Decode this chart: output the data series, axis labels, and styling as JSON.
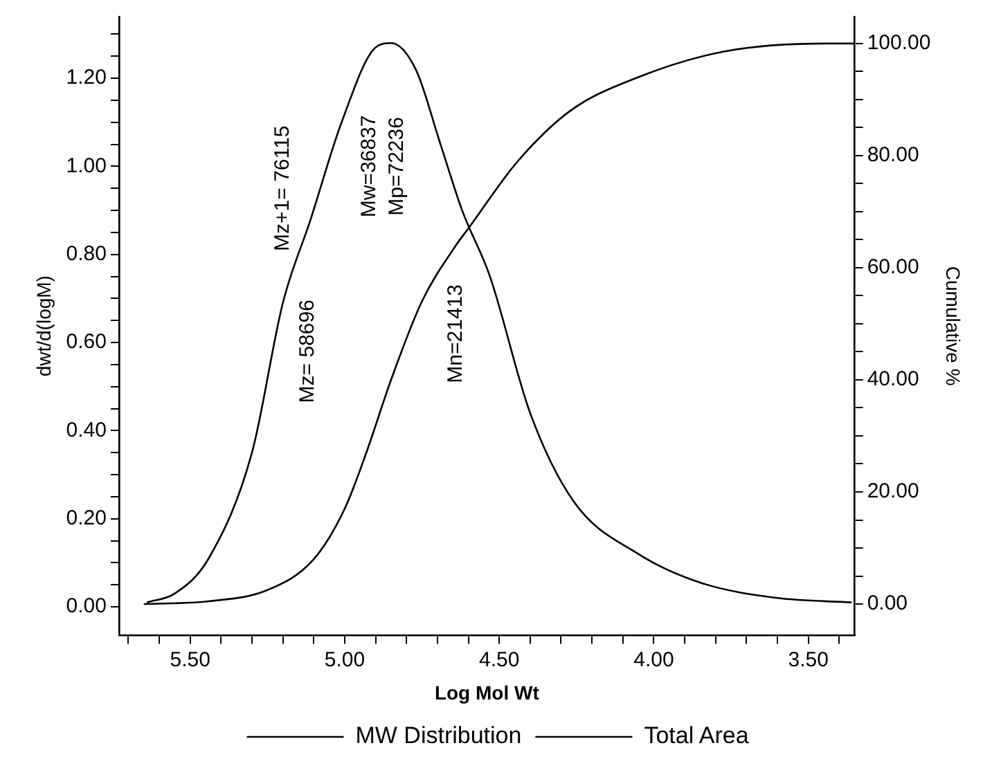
{
  "chart_data": {
    "type": "line",
    "xlabel": "Log Mol Wt",
    "ylabel": "dwt/d(logM)",
    "y2label": "Cumulative %",
    "xlim": [
      5.73,
      3.35
    ],
    "xticks": [
      {
        "value": 5.7,
        "label": null
      },
      {
        "value": 5.6,
        "label": null
      },
      {
        "value": 5.5,
        "label": "5.50"
      },
      {
        "value": 5.4,
        "label": null
      },
      {
        "value": 5.3,
        "label": null
      },
      {
        "value": 5.2,
        "label": null
      },
      {
        "value": 5.1,
        "label": null
      },
      {
        "value": 5.0,
        "label": "5.00"
      },
      {
        "value": 4.9,
        "label": null
      },
      {
        "value": 4.8,
        "label": null
      },
      {
        "value": 4.7,
        "label": null
      },
      {
        "value": 4.6,
        "label": null
      },
      {
        "value": 4.5,
        "label": "4.50"
      },
      {
        "value": 4.4,
        "label": null
      },
      {
        "value": 4.3,
        "label": null
      },
      {
        "value": 4.2,
        "label": null
      },
      {
        "value": 4.1,
        "label": null
      },
      {
        "value": 4.0,
        "label": "4.00"
      },
      {
        "value": 3.9,
        "label": null
      },
      {
        "value": 3.8,
        "label": null
      },
      {
        "value": 3.7,
        "label": null
      },
      {
        "value": 3.6,
        "label": null
      },
      {
        "value": 3.5,
        "label": "3.50"
      },
      {
        "value": 3.4,
        "label": null
      }
    ],
    "ylim": [
      -0.065,
      1.34
    ],
    "yticks": [
      {
        "value": 0,
        "label": "0.00"
      },
      {
        "value": 0.05,
        "label": null
      },
      {
        "value": 0.1,
        "label": null
      },
      {
        "value": 0.15,
        "label": null
      },
      {
        "value": 0.2,
        "label": "0.20"
      },
      {
        "value": 0.25,
        "label": null
      },
      {
        "value": 0.3,
        "label": null
      },
      {
        "value": 0.35,
        "label": null
      },
      {
        "value": 0.4,
        "label": "0.40"
      },
      {
        "value": 0.45,
        "label": null
      },
      {
        "value": 0.5,
        "label": null
      },
      {
        "value": 0.55,
        "label": null
      },
      {
        "value": 0.6,
        "label": "0.60"
      },
      {
        "value": 0.65,
        "label": null
      },
      {
        "value": 0.7,
        "label": null
      },
      {
        "value": 0.75,
        "label": null
      },
      {
        "value": 0.8,
        "label": "0.80"
      },
      {
        "value": 0.85,
        "label": null
      },
      {
        "value": 0.9,
        "label": null
      },
      {
        "value": 0.95,
        "label": null
      },
      {
        "value": 1.0,
        "label": "1.00"
      },
      {
        "value": 1.05,
        "label": null
      },
      {
        "value": 1.1,
        "label": null
      },
      {
        "value": 1.15,
        "label": null
      },
      {
        "value": 1.2,
        "label": "1.20"
      },
      {
        "value": 1.25,
        "label": null
      },
      {
        "value": 1.3,
        "label": null
      }
    ],
    "y2lim": [
      -5.6,
      104.8
    ],
    "y2ticks": [
      {
        "value": 0,
        "label": "0.00"
      },
      {
        "value": 5,
        "label": null
      },
      {
        "value": 10,
        "label": null
      },
      {
        "value": 15,
        "label": null
      },
      {
        "value": 20,
        "label": "20.00"
      },
      {
        "value": 25,
        "label": null
      },
      {
        "value": 30,
        "label": null
      },
      {
        "value": 35,
        "label": null
      },
      {
        "value": 40,
        "label": "40.00"
      },
      {
        "value": 45,
        "label": null
      },
      {
        "value": 50,
        "label": null
      },
      {
        "value": 55,
        "label": null
      },
      {
        "value": 60,
        "label": "60.00"
      },
      {
        "value": 65,
        "label": null
      },
      {
        "value": 70,
        "label": null
      },
      {
        "value": 75,
        "label": null
      },
      {
        "value": 80,
        "label": "80.00"
      },
      {
        "value": 85,
        "label": null
      },
      {
        "value": 90,
        "label": null
      },
      {
        "value": 95,
        "label": null
      },
      {
        "value": 100,
        "label": "100.00"
      }
    ],
    "grid": false,
    "legend": "bottom",
    "marker": "none",
    "line_style": "solid",
    "series": [
      {
        "name": "MW Distribution",
        "color": "#000000",
        "x": [
          5.64,
          5.55,
          5.44,
          5.3,
          5.2,
          5.11,
          5.01,
          4.9,
          4.85,
          4.77,
          4.69,
          4.62,
          4.53,
          4.4,
          4.26,
          4.05,
          3.85,
          3.6,
          3.36
        ],
        "values": [
          0.01,
          0.03,
          0.11,
          0.35,
          0.69,
          0.88,
          1.1,
          1.27,
          1.28,
          1.22,
          1.05,
          0.9,
          0.75,
          0.44,
          0.24,
          0.12,
          0.055,
          0.02,
          0.01
        ]
      },
      {
        "name": "Total Area",
        "color": "#000000",
        "axis": "y2",
        "x": [
          5.65,
          5.44,
          5.25,
          5.1,
          5.0,
          4.93,
          4.85,
          4.75,
          4.64,
          4.6,
          4.44,
          4.27,
          4.05,
          3.77,
          3.44,
          3.35
        ],
        "values": [
          0,
          0.5,
          2.5,
          8,
          17,
          27,
          40,
          54,
          64,
          67,
          79,
          88,
          94,
          98.6,
          100,
          100
        ]
      }
    ],
    "annotations": [
      "Mz+1= 76115",
      "Mz= 58696",
      "Mw=36837",
      "Mp=72236",
      "Mn=21413"
    ]
  }
}
